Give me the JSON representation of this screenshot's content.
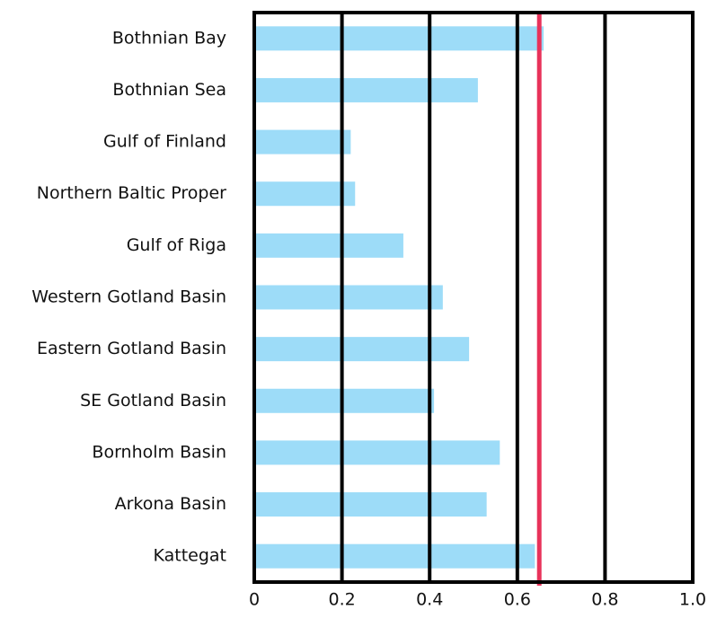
{
  "chart_data": {
    "type": "barh",
    "categories": [
      "Bothnian Bay",
      "Bothnian Sea",
      "Gulf of Finland",
      "Northern Baltic Proper",
      "Gulf of Riga",
      "Western Gotland Basin",
      "Eastern Gotland Basin",
      "SE Gotland Basin",
      "Bornholm Basin",
      "Arkona Basin",
      "Kattegat"
    ],
    "values": [
      0.66,
      0.51,
      0.22,
      0.23,
      0.34,
      0.43,
      0.49,
      0.41,
      0.56,
      0.53,
      0.64
    ],
    "color": "#9ddcf8",
    "xlim": [
      0,
      1
    ],
    "xticks": [
      0,
      0.2,
      0.4,
      0.6,
      0.8,
      {
        "value": 1,
        "label": "1.0"
      }
    ],
    "grid": true,
    "reference_line": {
      "value": 0.65,
      "color": "#e8325a"
    }
  }
}
